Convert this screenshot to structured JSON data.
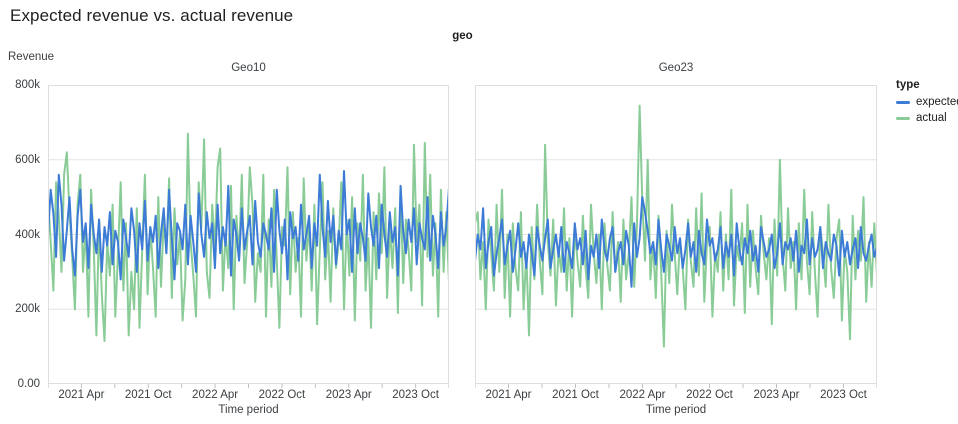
{
  "title": "Expected revenue vs. actual revenue",
  "facet_field_label": "geo",
  "y_axis": {
    "label": "Revenue",
    "ticks": [
      {
        "label": "800k",
        "value": 800
      },
      {
        "label": "600k",
        "value": 600
      },
      {
        "label": "400k",
        "value": 400
      },
      {
        "label": "200k",
        "value": 200
      },
      {
        "label": "0.00",
        "value": 0
      }
    ],
    "gridline_values": [
      200,
      400,
      600
    ]
  },
  "x_axis": {
    "label": "Time period",
    "months_total": 36,
    "labeled_ticks": [
      {
        "label": "2021 Apr",
        "month": 3
      },
      {
        "label": "2021 Oct",
        "month": 9
      },
      {
        "label": "2022 Apr",
        "month": 15
      },
      {
        "label": "2022 Oct",
        "month": 21
      },
      {
        "label": "2023 Apr",
        "month": 27
      },
      {
        "label": "2023 Oct",
        "month": 33
      }
    ],
    "minor_tick_months": [
      0,
      3,
      6,
      9,
      12,
      15,
      18,
      21,
      24,
      27,
      30,
      33,
      36
    ]
  },
  "legend": {
    "title": "type",
    "items": [
      {
        "label": "expected",
        "color": "#3d7cd6"
      },
      {
        "label": "actual",
        "color": "#8acc97"
      }
    ]
  },
  "colors": {
    "plot_border": "#dedede",
    "gridline": "#e4e4e4",
    "tick_mark": "#bdc1c6",
    "expected": "#3d7cd6",
    "actual": "#8acc97"
  },
  "chart_data": {
    "type": "line",
    "title": "Expected revenue vs. actual revenue",
    "facet_field": "geo",
    "xlabel": "Time period",
    "ylabel": "Revenue",
    "x_domain": [
      "2021-01",
      "2023-12"
    ],
    "x_sampling": "weekly, ~150 evenly spaced points per series (values estimated from pixels)",
    "y_unit": "revenue in thousands (k)",
    "ylim": [
      0,
      800
    ],
    "grid": true,
    "legend_position": "right",
    "facets": [
      {
        "name": "Geo10",
        "series": [
          {
            "name": "expected",
            "color": "#3d7cd6",
            "values": [
              400,
              520,
              455,
              340,
              560,
              480,
              330,
              410,
              500,
              360,
              290,
              450,
              520,
              380,
              430,
              310,
              480,
              400,
              350,
              440,
              300,
              420,
              370,
              460,
              320,
              410,
              380,
              280,
              440,
              390,
              340,
              470,
              410,
              300,
              430,
              360,
              490,
              330,
              420,
              380,
              450,
              310,
              400,
              470,
              350,
              520,
              390,
              280,
              430,
              410,
              360,
              480,
              320,
              450,
              380,
              300,
              510,
              400,
              340,
              460,
              390,
              430,
              310,
              480,
              350,
              420,
              370,
              530,
              290,
              440,
              400,
              330,
              470,
              360,
              410,
              450,
              320,
              490,
              380,
              340,
              430,
              400,
              360,
              470,
              300,
              520,
              410,
              350,
              440,
              280,
              460,
              390,
              420,
              330,
              480,
              360,
              400,
              450,
              310,
              430,
              370,
              560,
              420,
              340,
              490,
              380,
              450,
              320,
              410,
              360,
              570,
              400,
              440,
              300,
              470,
              350,
              430,
              390,
              330,
              510,
              420,
              370,
              450,
              310,
              480,
              400,
              340,
              460,
              380,
              420,
              290,
              530,
              410,
              350,
              440,
              380,
              470,
              320,
              430,
              390,
              360,
              500,
              330,
              450,
              400,
              310,
              460,
              370,
              420,
              525
            ]
          },
          {
            "name": "actual",
            "color": "#8acc97",
            "values": [
              500,
              380,
              250,
              540,
              450,
              300,
              560,
              620,
              460,
              340,
              200,
              480,
              560,
              300,
              420,
              180,
              520,
              360,
              130,
              440,
              240,
              115,
              380,
              290,
              480,
              180,
              350,
              540,
              250,
              430,
              130,
              300,
              200,
              470,
              150,
              360,
              560,
              240,
              420,
              310,
              180,
              500,
              260,
              440,
              350,
              550,
              230,
              470,
              320,
              400,
              170,
              280,
              670,
              380,
              290,
              180,
              540,
              420,
              655,
              300,
              230,
              480,
              360,
              580,
              630,
              250,
              400,
              310,
              530,
              200,
              450,
              340,
              560,
              270,
              380,
              580,
              480,
              220,
              350,
              300,
              560,
              180,
              440,
              260,
              520,
              330,
              150,
              420,
              370,
              580,
              240,
              460,
              300,
              390,
              180,
              550,
              330,
              430,
              250,
              480,
              160,
              360,
              540,
              280,
              410,
              220,
              470,
              310,
              380,
              540,
              200,
              440,
              290,
              500,
              170,
              430,
              330,
              560,
              250,
              390,
              150,
              460,
              280,
              510,
              350,
              580,
              230,
              420,
              310,
              470,
              190,
              530,
              270,
              440,
              360,
              250,
              640,
              380,
              480,
              210,
              645,
              340,
              560,
              290,
              430,
              180,
              520,
              300,
              460,
              270
            ]
          }
        ]
      },
      {
        "name": "Geo23",
        "series": [
          {
            "name": "expected",
            "color": "#3d7cd6",
            "values": [
              330,
              400,
              360,
              470,
              310,
              380,
              420,
              290,
              350,
              390,
              440,
              320,
              370,
              410,
              300,
              360,
              430,
              340,
              380,
              310,
              400,
              350,
              290,
              420,
              370,
              330,
              390,
              440,
              310,
              360,
              400,
              340,
              420,
              300,
              380,
              350,
              310,
              430,
              360,
              390,
              320,
              410,
              280,
              370,
              340,
              400,
              310,
              440,
              360,
              330,
              390,
              420,
              300,
              350,
              380,
              320,
              410,
              370,
              260,
              430,
              340,
              390,
              500,
              460,
              410,
              350,
              380,
              320,
              440,
              360,
              300,
              400,
              370,
              330,
              420,
              350,
              390,
              310,
              360,
              430,
              340,
              380,
              300,
              410,
              350,
              320,
              440,
              370,
              390,
              330,
              360,
              420,
              310,
              380,
              340,
              400,
              290,
              430,
              360,
              320,
              390,
              350,
              410,
              330,
              370,
              300,
              420,
              380,
              340,
              360,
              400,
              310,
              350,
              430,
              320,
              380,
              360,
              390,
              330,
              410,
              300,
              370,
              350,
              440,
              320,
              390,
              340,
              360,
              420,
              310,
              380,
              350,
              330,
              400,
              370,
              290,
              410,
              340,
              380,
              320,
              360,
              390,
              310,
              420,
              350,
              330,
              370,
              400,
              340,
              365
            ]
          },
          {
            "name": "actual",
            "color": "#8acc97",
            "values": [
              430,
              460,
              280,
              380,
              200,
              440,
              350,
              250,
              480,
              300,
              520,
              230,
              400,
              180,
              430,
              310,
              250,
              460,
              200,
              350,
              130,
              420,
              280,
              480,
              330,
              240,
              640,
              380,
              290,
              440,
              210,
              360,
              300,
              470,
              250,
              390,
              180,
              420,
              330,
              260,
              450,
              310,
              230,
              480,
              350,
              270,
              400,
              200,
              430,
              320,
              250,
              460,
              300,
              380,
              220,
              440,
              280,
              350,
              500,
              260,
              420,
              745,
              490,
              330,
              600,
              280,
              380,
              230,
              450,
              300,
              100,
              410,
              270,
              480,
              350,
              240,
              390,
              310,
              200,
              440,
              330,
              260,
              470,
              290,
              510,
              220,
              380,
              420,
              180,
              350,
              300,
              460,
              250,
              400,
              280,
              520,
              210,
              370,
              330,
              430,
              190,
              480,
              260,
              410,
              310,
              240,
              450,
              350,
              280,
              390,
              160,
              440,
              290,
              600,
              340,
              250,
              470,
              310,
              380,
              200,
              430,
              280,
              520,
              330,
              240,
              460,
              300,
              180,
              420,
              350,
              260,
              480,
              310,
              230,
              390,
              440,
              170,
              360,
              300,
              120,
              450,
              280,
              410,
              330,
              500,
              220,
              380,
              260,
              430,
              290
            ]
          }
        ]
      }
    ]
  }
}
